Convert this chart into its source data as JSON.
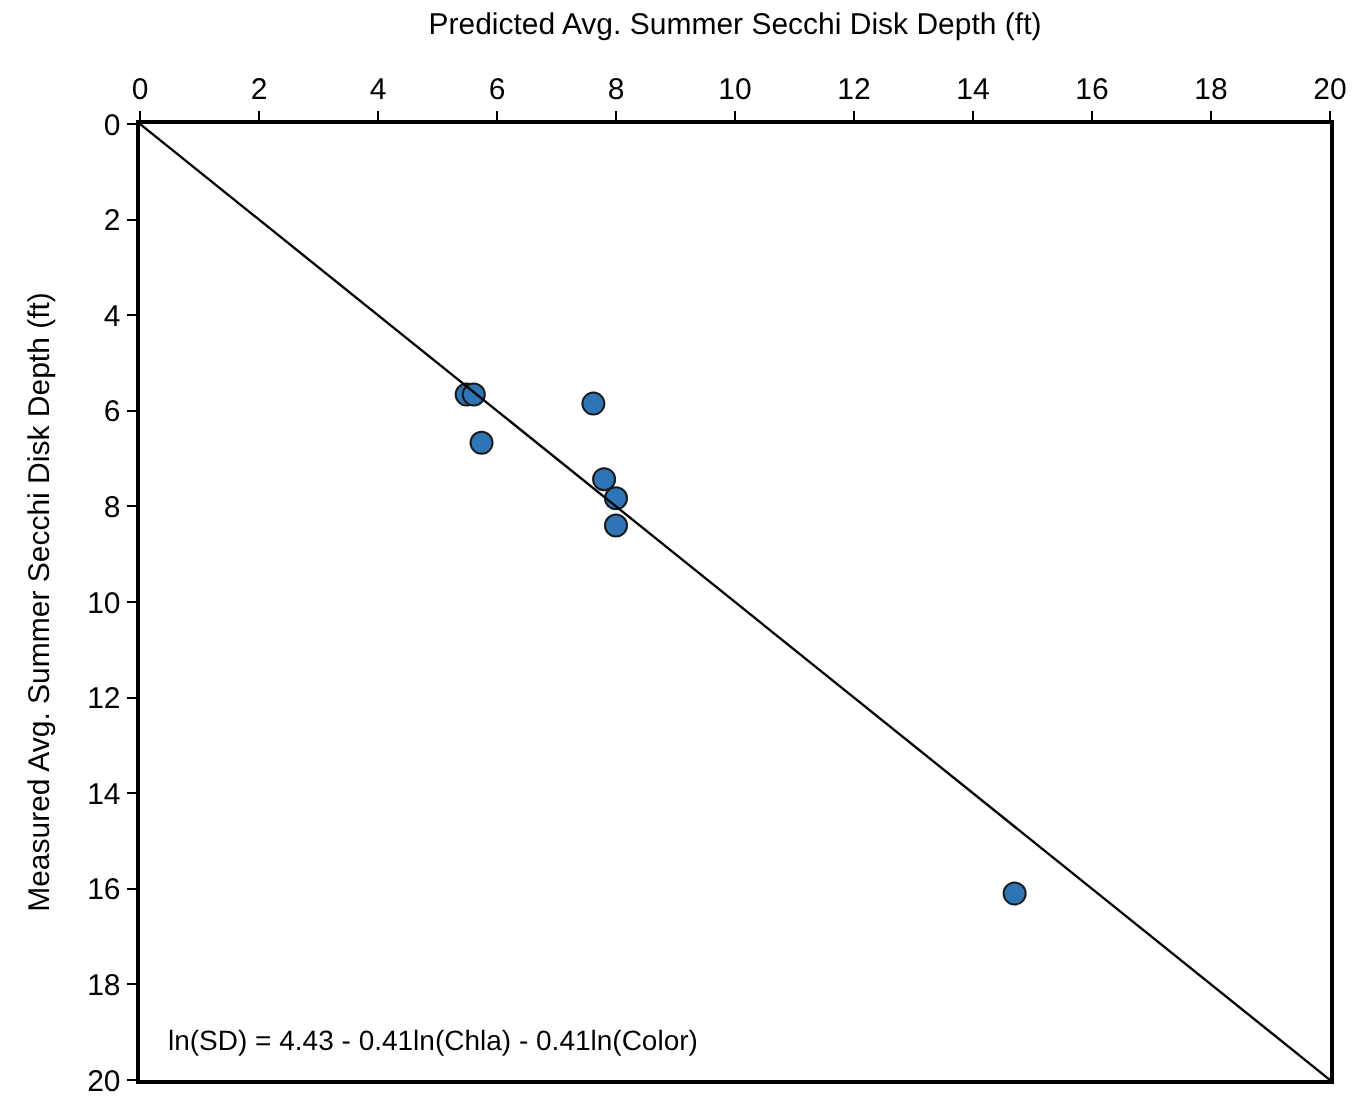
{
  "chart_data": {
    "type": "scatter",
    "xlabel": "Predicted Avg. Summer Secchi Disk Depth (ft)",
    "ylabel": "Measured Avg. Summer Secchi Disk Depth (ft)",
    "series": [
      {
        "color": "#2e75b6",
        "marker": "circle",
        "x": [
          5.49,
          5.61,
          5.74,
          7.62,
          7.8,
          8.0,
          8.0,
          14.7
        ],
        "values": [
          5.66,
          5.66,
          6.67,
          5.85,
          7.43,
          7.83,
          8.4,
          16.1
        ]
      },
      {
        "type": "line",
        "color": "#000000",
        "marker": "none",
        "line_style": "solid",
        "x": [
          0,
          20
        ],
        "values": [
          0,
          20
        ]
      }
    ],
    "xlim": [
      0,
      20
    ],
    "xticks": [
      0,
      2,
      4,
      6,
      8,
      10,
      12,
      14,
      16,
      18,
      20
    ],
    "ylim": [
      20,
      0
    ],
    "yticks": [
      0,
      2,
      4,
      6,
      8,
      10,
      12,
      14,
      16,
      18,
      20
    ],
    "annotations": [
      "ln(SD) = 4.43 - 0.41ln(Chla) - 0.41ln(Color)"
    ]
  }
}
